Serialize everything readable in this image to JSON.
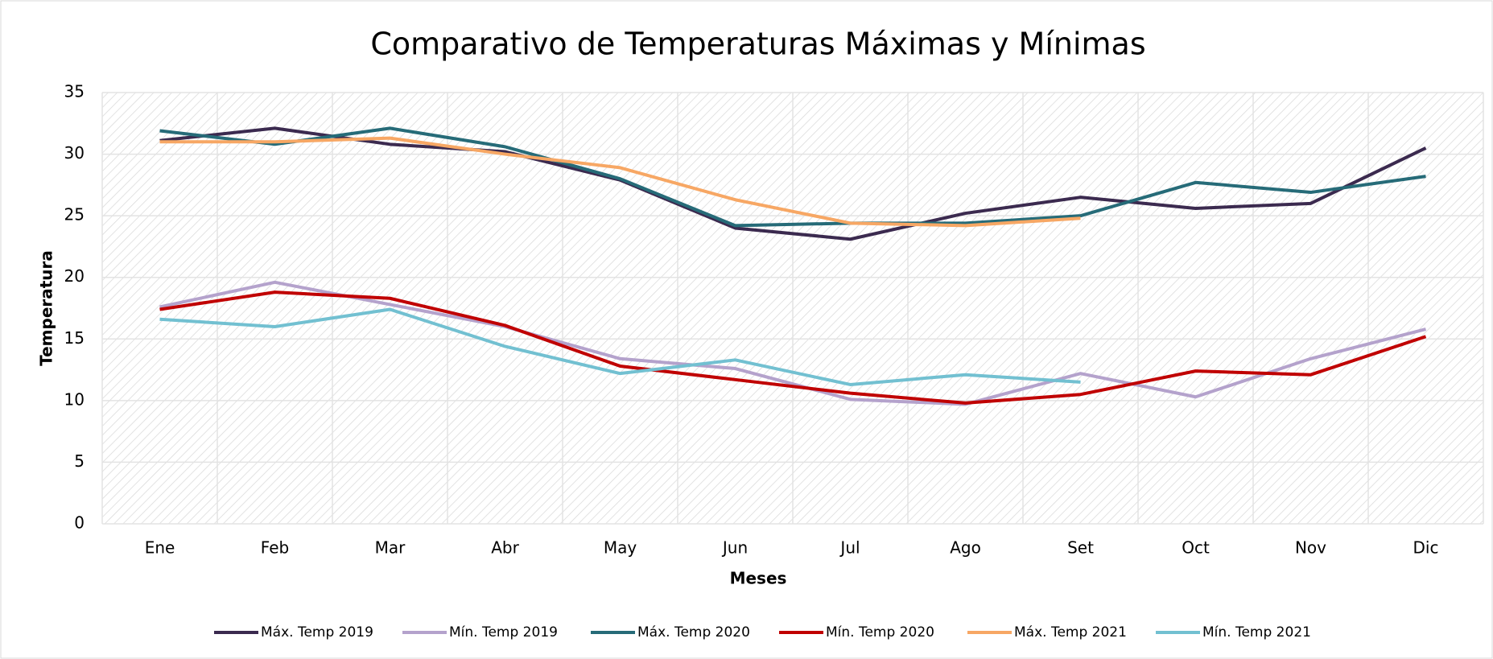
{
  "chart_data": {
    "type": "line",
    "title": "Comparativo de Temperaturas  Máximas y Mínimas",
    "xlabel": "Meses",
    "ylabel": "Temperatura",
    "categories": [
      "Ene",
      "Feb",
      "Mar",
      "Abr",
      "May",
      "Jun",
      "Jul",
      "Ago",
      "Set",
      "Oct",
      "Nov",
      "Dic"
    ],
    "ylim": [
      0,
      35
    ],
    "yticks": [
      0,
      5,
      10,
      15,
      20,
      25,
      30,
      35
    ],
    "grid": true,
    "legend": "bottom",
    "series": [
      {
        "name": "Máx. Temp 2019",
        "color": "#3b2a4f",
        "values": [
          31.1,
          32.1,
          30.8,
          30.2,
          27.9,
          24.0,
          23.1,
          25.2,
          26.5,
          25.6,
          26.0,
          30.5
        ]
      },
      {
        "name": "Mín. Temp 2019",
        "color": "#b4a2cc",
        "values": [
          17.6,
          19.6,
          17.8,
          16.0,
          13.4,
          12.6,
          10.1,
          9.7,
          12.2,
          10.3,
          13.4,
          15.8
        ]
      },
      {
        "name": "Máx. Temp 2020",
        "color": "#266b78",
        "values": [
          31.9,
          30.8,
          32.1,
          30.6,
          28.0,
          24.2,
          24.4,
          24.4,
          25.0,
          27.7,
          26.9,
          28.2
        ]
      },
      {
        "name": "Mín. Temp 2020",
        "color": "#c00000",
        "values": [
          17.4,
          18.8,
          18.3,
          16.1,
          12.8,
          11.7,
          10.6,
          9.8,
          10.5,
          12.4,
          12.1,
          15.2
        ]
      },
      {
        "name": "Máx. Temp 2021",
        "color": "#f7a764",
        "values": [
          31.0,
          31.0,
          31.3,
          30.0,
          28.9,
          26.3,
          24.4,
          24.2,
          24.8,
          null,
          null,
          null
        ]
      },
      {
        "name": "Mín. Temp 2021",
        "color": "#72c0d1",
        "values": [
          16.6,
          16.0,
          17.4,
          14.4,
          12.2,
          13.3,
          11.3,
          12.1,
          11.5,
          null,
          null,
          null
        ]
      }
    ]
  }
}
